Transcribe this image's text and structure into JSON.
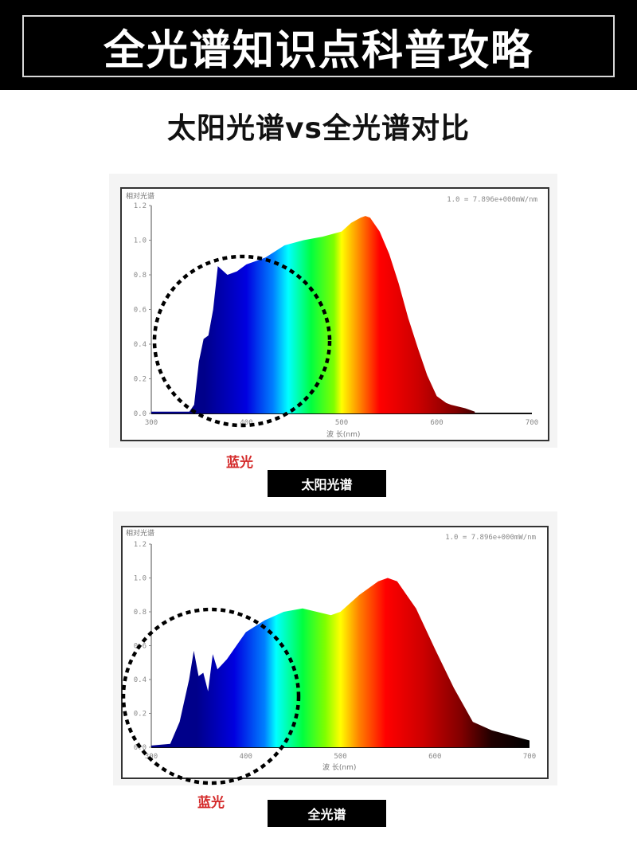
{
  "header": {
    "title": "全光谱知识点科普攻略"
  },
  "subtitle": "太阳光谱vs全光谱对比",
  "charts": [
    {
      "caption": "太阳光谱",
      "highlight_label": "蓝光",
      "y_title": "相对光谱",
      "x_title": "波 长(nm)",
      "scale_note": "1.0 = 7.896e+000mW/nm",
      "y_ticks": [
        "0.0",
        "0.2",
        "0.4",
        "0.6",
        "0.8",
        "1.0",
        "1.2"
      ],
      "x_ticks": [
        "300",
        "400",
        "500",
        "600",
        "700"
      ]
    },
    {
      "caption": "全光谱",
      "highlight_label": "蓝光",
      "y_title": "相对光谱",
      "x_title": "波 长(nm)",
      "scale_note": "1.0 = 7.896e+000mW/nm",
      "y_ticks": [
        "0.0",
        "0.2",
        "0.4",
        "0.6",
        "0.8",
        "1.0",
        "1.2"
      ],
      "x_ticks": [
        "300",
        "400",
        "500",
        "600",
        "700"
      ]
    }
  ],
  "chart_data": [
    {
      "type": "area",
      "title": "太阳光谱",
      "xlabel": "波 长(nm)",
      "ylabel": "相对光谱",
      "xlim": [
        300,
        700
      ],
      "ylim": [
        0,
        1.2
      ],
      "grid": false,
      "annotation": "1.0 = 7.896e+000mW/nm",
      "highlight": {
        "label": "蓝光",
        "shape": "dashed-circle",
        "center_nm": 345,
        "center_y": 0.4
      },
      "x": [
        300,
        340,
        345,
        350,
        355,
        360,
        365,
        370,
        380,
        390,
        395,
        400,
        410,
        420,
        440,
        460,
        480,
        500,
        510,
        520,
        525,
        530,
        540,
        550,
        560,
        570,
        580,
        590,
        600,
        610,
        615,
        630,
        640
      ],
      "y": [
        0.01,
        0.01,
        0.05,
        0.3,
        0.43,
        0.45,
        0.6,
        0.85,
        0.8,
        0.82,
        0.84,
        0.86,
        0.88,
        0.9,
        0.97,
        1.0,
        1.02,
        1.05,
        1.1,
        1.13,
        1.14,
        1.13,
        1.05,
        0.92,
        0.75,
        0.55,
        0.38,
        0.22,
        0.1,
        0.06,
        0.05,
        0.03,
        0.01
      ]
    },
    {
      "type": "area",
      "title": "全光谱",
      "xlabel": "波 长(nm)",
      "ylabel": "相对光谱",
      "xlim": [
        300,
        700
      ],
      "ylim": [
        0,
        1.2
      ],
      "grid": false,
      "annotation": "1.0 = 7.896e+000mW/nm",
      "highlight": {
        "label": "蓝光",
        "shape": "dashed-circle",
        "center_nm": 330,
        "center_y": 0.35
      },
      "x": [
        300,
        320,
        330,
        340,
        345,
        350,
        355,
        360,
        365,
        370,
        375,
        380,
        390,
        400,
        420,
        440,
        460,
        475,
        490,
        500,
        520,
        540,
        550,
        560,
        580,
        600,
        620,
        640,
        660,
        680,
        700
      ],
      "y": [
        0.01,
        0.02,
        0.15,
        0.4,
        0.57,
        0.42,
        0.44,
        0.33,
        0.55,
        0.46,
        0.49,
        0.52,
        0.6,
        0.68,
        0.75,
        0.8,
        0.82,
        0.8,
        0.78,
        0.8,
        0.9,
        0.98,
        1.0,
        0.98,
        0.82,
        0.58,
        0.35,
        0.15,
        0.1,
        0.07,
        0.04
      ]
    }
  ]
}
